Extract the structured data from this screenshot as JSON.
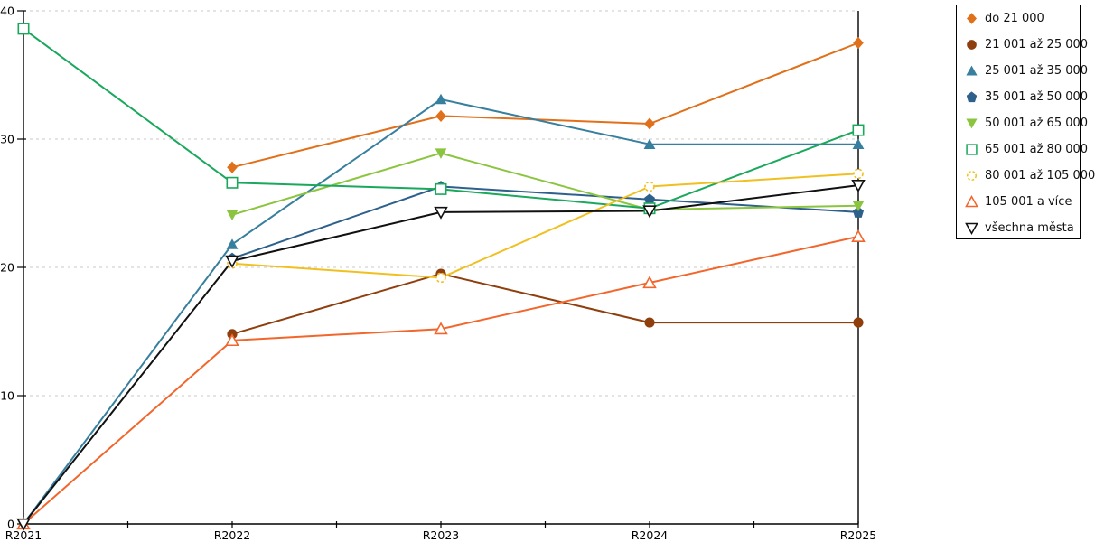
{
  "chart_data": {
    "type": "line",
    "title": "",
    "xlabel": "",
    "ylabel": "",
    "categories": [
      "R2021",
      "R2022",
      "R2023",
      "R2024",
      "R2025"
    ],
    "ylim": [
      0,
      40
    ],
    "yticks": [
      0,
      10,
      20,
      30,
      40
    ],
    "grid": "horizontal-dashed",
    "grid_color": "#c9c9c9",
    "axis_color": "#000000",
    "legend_position": "top-right-outside",
    "series": [
      {
        "name": "do 21 000",
        "marker": "diamond",
        "open": false,
        "color": "#e1701a",
        "values": [
          null,
          27.8,
          31.8,
          31.2,
          37.5
        ]
      },
      {
        "name": "21 001 až 25 000",
        "marker": "circle",
        "open": false,
        "color": "#8f3e0d",
        "values": [
          null,
          14.8,
          19.5,
          15.7,
          15.7
        ]
      },
      {
        "name": "25 001 až 35 000",
        "marker": "triangle-up",
        "open": false,
        "color": "#377f9e",
        "values": [
          0,
          21.8,
          33.1,
          29.6,
          29.6
        ]
      },
      {
        "name": "35 001 až 50 000",
        "marker": "pentagon",
        "open": false,
        "color": "#2e608c",
        "values": [
          null,
          20.7,
          26.3,
          25.3,
          24.3
        ]
      },
      {
        "name": "50 001 až 65 000",
        "marker": "triangle-down",
        "open": false,
        "color": "#8bc53f",
        "values": [
          null,
          24.1,
          28.9,
          24.5,
          24.8
        ]
      },
      {
        "name": "65 001 až 80 000",
        "marker": "square",
        "open": true,
        "color": "#1aa85c",
        "values": [
          38.6,
          26.6,
          26.1,
          24.6,
          30.7
        ]
      },
      {
        "name": "80 001 až 105 000",
        "marker": "circle-dashed",
        "open": true,
        "color": "#f0c020",
        "values": [
          null,
          20.3,
          19.2,
          26.3,
          27.3
        ]
      },
      {
        "name": "105 001 a více",
        "marker": "triangle-up",
        "open": true,
        "color": "#f2662c",
        "values": [
          0,
          14.3,
          15.2,
          18.8,
          22.4
        ]
      },
      {
        "name": "všechna města",
        "marker": "triangle-down",
        "open": true,
        "color": "#111111",
        "values": [
          0,
          20.5,
          24.3,
          24.4,
          26.4
        ]
      }
    ]
  }
}
